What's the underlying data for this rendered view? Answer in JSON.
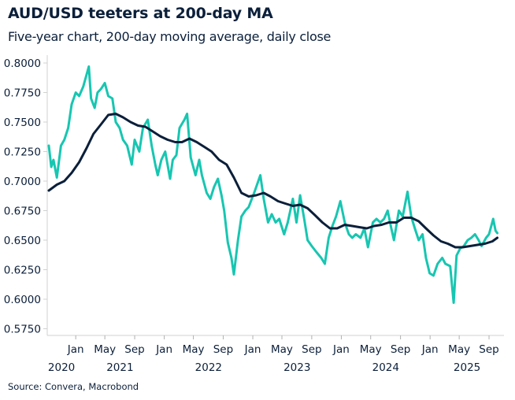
{
  "chart_data": {
    "type": "line",
    "title": "AUD/USD teeters at 200-day MA",
    "subtitle": "Five-year chart, 200-day moving average, daily close",
    "source": "Source: Convera, Macrobond",
    "xlabel": "",
    "ylabel": "",
    "xlim": [
      "2020-09-12",
      "2025-10-05"
    ],
    "ylim": [
      0.575,
      0.8
    ],
    "y_ticks": [
      "0.5750",
      "0.6000",
      "0.6250",
      "0.6500",
      "0.6750",
      "0.7000",
      "0.7250",
      "0.7500",
      "0.7750",
      "0.8000"
    ],
    "x_ticks": [
      {
        "date": "2021-01-01",
        "label": "Jan"
      },
      {
        "date": "2021-05-01",
        "label": "May"
      },
      {
        "date": "2021-09-01",
        "label": "Sep"
      },
      {
        "date": "2022-01-01",
        "label": "Jan"
      },
      {
        "date": "2022-05-01",
        "label": "May"
      },
      {
        "date": "2022-09-01",
        "label": "Sep"
      },
      {
        "date": "2023-01-01",
        "label": "Jan"
      },
      {
        "date": "2023-05-01",
        "label": "May"
      },
      {
        "date": "2023-09-01",
        "label": "Sep"
      },
      {
        "date": "2024-01-01",
        "label": "Jan"
      },
      {
        "date": "2024-05-01",
        "label": "May"
      },
      {
        "date": "2024-09-01",
        "label": "Sep"
      },
      {
        "date": "2025-01-01",
        "label": "Jan"
      },
      {
        "date": "2025-05-01",
        "label": "May"
      },
      {
        "date": "2025-09-01",
        "label": "Sep"
      }
    ],
    "year_labels": [
      {
        "label": "2020",
        "from": "2020-09-12",
        "to": "2021-01-01"
      },
      {
        "label": "2021",
        "from": "2021-01-01",
        "to": "2022-01-01"
      },
      {
        "label": "2022",
        "from": "2022-01-01",
        "to": "2023-01-01"
      },
      {
        "label": "2023",
        "from": "2023-01-01",
        "to": "2024-01-01"
      },
      {
        "label": "2024",
        "from": "2024-01-01",
        "to": "2025-01-01"
      },
      {
        "label": "2025",
        "from": "2025-01-01",
        "to": "2025-10-05"
      }
    ],
    "grid": false,
    "legend": "none",
    "series": [
      {
        "color": "#17c6b1",
        "points": [
          [
            "2020-09-12",
            0.73
          ],
          [
            "2020-09-22",
            0.712
          ],
          [
            "2020-10-01",
            0.718
          ],
          [
            "2020-10-15",
            0.703
          ],
          [
            "2020-11-01",
            0.73
          ],
          [
            "2020-11-15",
            0.735
          ],
          [
            "2020-12-01",
            0.745
          ],
          [
            "2020-12-15",
            0.765
          ],
          [
            "2021-01-01",
            0.775
          ],
          [
            "2021-01-15",
            0.772
          ],
          [
            "2021-02-01",
            0.78
          ],
          [
            "2021-02-24",
            0.797
          ],
          [
            "2021-03-05",
            0.77
          ],
          [
            "2021-03-20",
            0.762
          ],
          [
            "2021-04-01",
            0.775
          ],
          [
            "2021-04-15",
            0.778
          ],
          [
            "2021-05-01",
            0.783
          ],
          [
            "2021-05-15",
            0.772
          ],
          [
            "2021-06-01",
            0.77
          ],
          [
            "2021-06-15",
            0.75
          ],
          [
            "2021-07-01",
            0.745
          ],
          [
            "2021-07-15",
            0.735
          ],
          [
            "2021-08-01",
            0.73
          ],
          [
            "2021-08-20",
            0.714
          ],
          [
            "2021-09-01",
            0.735
          ],
          [
            "2021-09-20",
            0.725
          ],
          [
            "2021-10-05",
            0.745
          ],
          [
            "2021-10-25",
            0.752
          ],
          [
            "2021-11-10",
            0.73
          ],
          [
            "2021-11-25",
            0.714
          ],
          [
            "2021-12-05",
            0.705
          ],
          [
            "2021-12-20",
            0.718
          ],
          [
            "2022-01-05",
            0.725
          ],
          [
            "2022-01-25",
            0.702
          ],
          [
            "2022-02-05",
            0.718
          ],
          [
            "2022-02-20",
            0.722
          ],
          [
            "2022-03-05",
            0.745
          ],
          [
            "2022-03-25",
            0.752
          ],
          [
            "2022-04-05",
            0.757
          ],
          [
            "2022-04-20",
            0.72
          ],
          [
            "2022-05-10",
            0.705
          ],
          [
            "2022-05-25",
            0.718
          ],
          [
            "2022-06-05",
            0.705
          ],
          [
            "2022-06-25",
            0.69
          ],
          [
            "2022-07-10",
            0.685
          ],
          [
            "2022-07-25",
            0.695
          ],
          [
            "2022-08-10",
            0.702
          ],
          [
            "2022-08-25",
            0.688
          ],
          [
            "2022-09-05",
            0.675
          ],
          [
            "2022-09-20",
            0.648
          ],
          [
            "2022-10-05",
            0.635
          ],
          [
            "2022-10-15",
            0.621
          ],
          [
            "2022-11-01",
            0.65
          ],
          [
            "2022-11-15",
            0.67
          ],
          [
            "2022-12-01",
            0.675
          ],
          [
            "2022-12-15",
            0.678
          ],
          [
            "2023-01-10",
            0.692
          ],
          [
            "2023-02-01",
            0.705
          ],
          [
            "2023-02-15",
            0.685
          ],
          [
            "2023-03-05",
            0.665
          ],
          [
            "2023-03-20",
            0.672
          ],
          [
            "2023-04-05",
            0.665
          ],
          [
            "2023-04-20",
            0.668
          ],
          [
            "2023-05-10",
            0.655
          ],
          [
            "2023-05-25",
            0.665
          ],
          [
            "2023-06-15",
            0.685
          ],
          [
            "2023-06-30",
            0.665
          ],
          [
            "2023-07-15",
            0.688
          ],
          [
            "2023-08-01",
            0.668
          ],
          [
            "2023-08-15",
            0.65
          ],
          [
            "2023-09-01",
            0.645
          ],
          [
            "2023-09-20",
            0.64
          ],
          [
            "2023-10-10",
            0.635
          ],
          [
            "2023-10-25",
            0.63
          ],
          [
            "2023-11-10",
            0.652
          ],
          [
            "2023-11-25",
            0.662
          ],
          [
            "2023-12-10",
            0.67
          ],
          [
            "2023-12-28",
            0.683
          ],
          [
            "2024-01-15",
            0.665
          ],
          [
            "2024-02-01",
            0.655
          ],
          [
            "2024-02-15",
            0.652
          ],
          [
            "2024-03-01",
            0.655
          ],
          [
            "2024-03-20",
            0.652
          ],
          [
            "2024-04-05",
            0.66
          ],
          [
            "2024-04-20",
            0.644
          ],
          [
            "2024-05-10",
            0.665
          ],
          [
            "2024-05-25",
            0.668
          ],
          [
            "2024-06-10",
            0.665
          ],
          [
            "2024-06-25",
            0.668
          ],
          [
            "2024-07-10",
            0.675
          ],
          [
            "2024-07-25",
            0.66
          ],
          [
            "2024-08-05",
            0.65
          ],
          [
            "2024-08-25",
            0.675
          ],
          [
            "2024-09-10",
            0.67
          ],
          [
            "2024-09-30",
            0.691
          ],
          [
            "2024-10-15",
            0.67
          ],
          [
            "2024-10-30",
            0.66
          ],
          [
            "2024-11-15",
            0.65
          ],
          [
            "2024-12-01",
            0.655
          ],
          [
            "2024-12-15",
            0.635
          ],
          [
            "2024-12-30",
            0.622
          ],
          [
            "2025-01-15",
            0.62
          ],
          [
            "2025-02-01",
            0.63
          ],
          [
            "2025-02-20",
            0.635
          ],
          [
            "2025-03-05",
            0.63
          ],
          [
            "2025-03-25",
            0.628
          ],
          [
            "2025-04-08",
            0.597
          ],
          [
            "2025-04-20",
            0.637
          ],
          [
            "2025-05-05",
            0.643
          ],
          [
            "2025-05-20",
            0.645
          ],
          [
            "2025-06-05",
            0.65
          ],
          [
            "2025-06-20",
            0.652
          ],
          [
            "2025-07-05",
            0.655
          ],
          [
            "2025-07-20",
            0.65
          ],
          [
            "2025-08-01",
            0.645
          ],
          [
            "2025-08-20",
            0.652
          ],
          [
            "2025-09-01",
            0.655
          ],
          [
            "2025-09-18",
            0.668
          ],
          [
            "2025-09-28",
            0.658
          ],
          [
            "2025-10-05",
            0.656
          ]
        ]
      },
      {
        "color": "#0b1f3a",
        "points": [
          [
            "2020-09-12",
            0.692
          ],
          [
            "2020-10-15",
            0.697
          ],
          [
            "2020-11-15",
            0.7
          ],
          [
            "2020-12-15",
            0.707
          ],
          [
            "2021-01-15",
            0.716
          ],
          [
            "2021-02-15",
            0.728
          ],
          [
            "2021-03-15",
            0.74
          ],
          [
            "2021-04-15",
            0.748
          ],
          [
            "2021-05-15",
            0.756
          ],
          [
            "2021-06-15",
            0.757
          ],
          [
            "2021-07-15",
            0.754
          ],
          [
            "2021-08-15",
            0.75
          ],
          [
            "2021-09-15",
            0.747
          ],
          [
            "2021-10-15",
            0.746
          ],
          [
            "2021-11-15",
            0.742
          ],
          [
            "2021-12-15",
            0.738
          ],
          [
            "2022-01-15",
            0.735
          ],
          [
            "2022-02-15",
            0.733
          ],
          [
            "2022-03-15",
            0.733
          ],
          [
            "2022-04-15",
            0.736
          ],
          [
            "2022-05-15",
            0.733
          ],
          [
            "2022-06-15",
            0.729
          ],
          [
            "2022-07-15",
            0.725
          ],
          [
            "2022-08-15",
            0.718
          ],
          [
            "2022-09-15",
            0.714
          ],
          [
            "2022-10-15",
            0.703
          ],
          [
            "2022-11-15",
            0.69
          ],
          [
            "2022-12-15",
            0.687
          ],
          [
            "2023-01-15",
            0.688
          ],
          [
            "2023-02-15",
            0.69
          ],
          [
            "2023-03-15",
            0.687
          ],
          [
            "2023-04-15",
            0.683
          ],
          [
            "2023-05-15",
            0.681
          ],
          [
            "2023-06-15",
            0.679
          ],
          [
            "2023-07-15",
            0.68
          ],
          [
            "2023-08-15",
            0.677
          ],
          [
            "2023-09-15",
            0.671
          ],
          [
            "2023-10-15",
            0.665
          ],
          [
            "2023-11-15",
            0.66
          ],
          [
            "2023-12-15",
            0.66
          ],
          [
            "2024-01-15",
            0.663
          ],
          [
            "2024-02-15",
            0.662
          ],
          [
            "2024-03-15",
            0.661
          ],
          [
            "2024-04-15",
            0.66
          ],
          [
            "2024-05-15",
            0.662
          ],
          [
            "2024-06-15",
            0.663
          ],
          [
            "2024-07-15",
            0.665
          ],
          [
            "2024-08-15",
            0.665
          ],
          [
            "2024-09-15",
            0.669
          ],
          [
            "2024-10-15",
            0.669
          ],
          [
            "2024-11-15",
            0.666
          ],
          [
            "2024-12-15",
            0.66
          ],
          [
            "2025-01-15",
            0.654
          ],
          [
            "2025-02-15",
            0.649
          ],
          [
            "2025-03-15",
            0.647
          ],
          [
            "2025-04-15",
            0.644
          ],
          [
            "2025-05-15",
            0.644
          ],
          [
            "2025-06-15",
            0.645
          ],
          [
            "2025-07-15",
            0.646
          ],
          [
            "2025-08-15",
            0.647
          ],
          [
            "2025-09-15",
            0.649
          ],
          [
            "2025-10-05",
            0.652
          ]
        ]
      }
    ]
  }
}
